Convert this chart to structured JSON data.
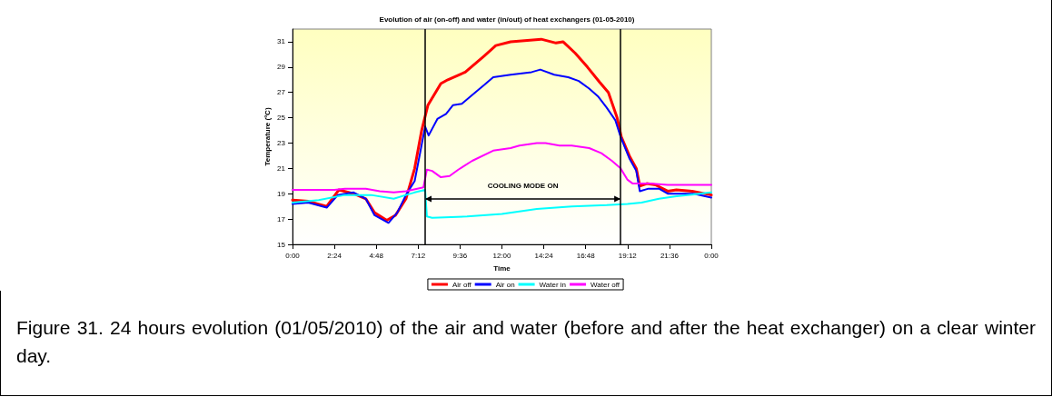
{
  "chart_data": {
    "type": "line",
    "title": "Evolution of air (on-off) and water (in/out) of heat exchangers (01-05-2010)",
    "xlabel": "Time",
    "ylabel": "Temperature (ºC)",
    "xlim": [
      0,
      24
    ],
    "xticks": [
      {
        "value": 0,
        "label": "0:00"
      },
      {
        "value": 2.4,
        "label": "2:24"
      },
      {
        "value": 4.8,
        "label": "4:48"
      },
      {
        "value": 7.2,
        "label": "7:12"
      },
      {
        "value": 9.6,
        "label": "9:36"
      },
      {
        "value": 12,
        "label": "12:00"
      },
      {
        "value": 14.4,
        "label": "14:24"
      },
      {
        "value": 16.8,
        "label": "16:48"
      },
      {
        "value": 19.2,
        "label": "19:12"
      },
      {
        "value": 21.6,
        "label": "21:36"
      },
      {
        "value": 24,
        "label": "0:00"
      }
    ],
    "ylim": [
      15,
      32
    ],
    "yticks": [
      15,
      17,
      19,
      21,
      23,
      25,
      27,
      29,
      31
    ],
    "grid": false,
    "legend": "bottom",
    "series": [
      {
        "name": "Air off",
        "color": "#ff0000",
        "x": [
          0,
          0.9,
          1.96,
          2.65,
          3.5,
          4.2,
          4.7,
          5.4,
          5.9,
          6.5,
          7.0,
          7.4,
          7.76,
          8.5,
          8.9,
          9.9,
          11.0,
          11.65,
          12.5,
          14.25,
          15.1,
          15.5,
          16.2,
          16.9,
          17.6,
          18.1,
          18.6,
          18.84,
          19.3,
          19.7,
          19.9,
          20.3,
          20.8,
          21.5,
          22.0,
          22.9,
          24
        ],
        "values": [
          18.5,
          18.4,
          18.0,
          19.3,
          19.0,
          18.6,
          17.5,
          16.9,
          17.3,
          18.6,
          21.0,
          24.0,
          26.0,
          27.7,
          28.0,
          28.6,
          29.9,
          30.7,
          31.0,
          31.2,
          30.9,
          31.0,
          30.1,
          29.0,
          27.8,
          27.0,
          25.0,
          23.5,
          22.0,
          21.0,
          19.6,
          19.8,
          19.7,
          19.2,
          19.3,
          19.2,
          18.9
        ]
      },
      {
        "name": "Air on",
        "color": "#0000ff",
        "x": [
          0,
          0.9,
          1.96,
          2.6,
          3.5,
          4.2,
          4.7,
          5.5,
          6.0,
          6.5,
          7.0,
          7.35,
          7.6,
          7.8,
          8.3,
          8.8,
          9.2,
          9.7,
          10.3,
          11.0,
          11.5,
          12.5,
          13.7,
          14.2,
          15.0,
          15.8,
          16.4,
          17.0,
          17.5,
          18.0,
          18.5,
          18.8,
          19.3,
          19.7,
          19.9,
          20.4,
          21.0,
          21.5,
          22.0,
          23.0,
          24
        ],
        "values": [
          18.2,
          18.3,
          17.9,
          18.9,
          19.1,
          18.6,
          17.3,
          16.7,
          17.5,
          18.9,
          20.0,
          22.5,
          24.3,
          23.6,
          24.9,
          25.3,
          26.0,
          26.1,
          26.8,
          27.6,
          28.2,
          28.4,
          28.6,
          28.8,
          28.4,
          28.2,
          27.9,
          27.3,
          26.7,
          25.8,
          24.8,
          23.5,
          21.8,
          20.8,
          19.2,
          19.4,
          19.4,
          19.0,
          19.0,
          19.0,
          18.7
        ]
      },
      {
        "name": "Water in",
        "color": "#00ffff",
        "x": [
          0,
          1.5,
          3.0,
          4.5,
          5.8,
          6.5,
          7.0,
          7.6,
          7.7,
          8.0,
          10.0,
          12.0,
          14.0,
          16.0,
          18.0,
          19.2,
          20.0,
          21.0,
          22.0,
          24
        ],
        "values": [
          18.3,
          18.5,
          18.9,
          18.9,
          18.6,
          18.9,
          19.1,
          19.3,
          17.2,
          17.1,
          17.2,
          17.4,
          17.8,
          18.0,
          18.1,
          18.2,
          18.3,
          18.6,
          18.8,
          19.1
        ]
      },
      {
        "name": "Water off",
        "color": "#ff00ff",
        "x": [
          0,
          2.4,
          3.0,
          4.2,
          5.0,
          5.8,
          6.5,
          7.5,
          7.7,
          8.0,
          8.5,
          9.0,
          9.5,
          10.3,
          11.5,
          12.5,
          13.0,
          14.0,
          14.5,
          15.3,
          16.0,
          17.0,
          17.7,
          18.3,
          18.8,
          19.2,
          19.5,
          20.5,
          21.5,
          24
        ],
        "values": [
          19.3,
          19.3,
          19.4,
          19.4,
          19.2,
          19.1,
          19.2,
          19.5,
          20.9,
          20.8,
          20.3,
          20.4,
          20.9,
          21.6,
          22.4,
          22.6,
          22.8,
          23.0,
          23.0,
          22.8,
          22.8,
          22.6,
          22.2,
          21.6,
          21.0,
          20.1,
          19.8,
          19.8,
          19.7,
          19.7
        ]
      }
    ],
    "ref_lines": [
      {
        "axis": "x",
        "value": 7.6,
        "label": null,
        "color": "#000000"
      },
      {
        "axis": "x",
        "value": 18.8,
        "label": null,
        "color": "#000000"
      }
    ],
    "annotations": [
      "COOLING MODE ON",
      "Figure 31. 24 hours evolution (01/05/2010) of the air and water (before and after the heat exchanger) on a clear winter day."
    ]
  }
}
